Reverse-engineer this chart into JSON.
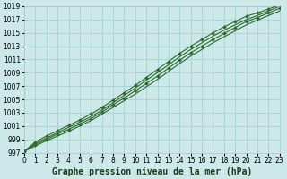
{
  "xlabel": "Graphe pression niveau de la mer (hPa)",
  "x": [
    0,
    1,
    2,
    3,
    4,
    5,
    6,
    7,
    8,
    9,
    10,
    11,
    12,
    13,
    14,
    15,
    16,
    17,
    18,
    19,
    20,
    21,
    22,
    23
  ],
  "lines": [
    [
      997.2,
      998.0,
      998.8,
      999.5,
      1000.2,
      1001.0,
      1001.8,
      1002.8,
      1003.8,
      1004.8,
      1005.8,
      1006.9,
      1008.0,
      1009.2,
      1010.4,
      1011.5,
      1012.5,
      1013.5,
      1014.4,
      1015.3,
      1016.2,
      1016.9,
      1017.6,
      1018.3
    ],
    [
      997.2,
      998.2,
      999.0,
      999.8,
      1000.5,
      1001.3,
      1002.1,
      1003.1,
      1004.2,
      1005.2,
      1006.3,
      1007.4,
      1008.5,
      1009.7,
      1010.9,
      1012.0,
      1013.0,
      1014.0,
      1014.9,
      1015.8,
      1016.7,
      1017.3,
      1018.0,
      1018.7
    ],
    [
      997.2,
      998.4,
      999.2,
      1000.0,
      1000.8,
      1001.6,
      1002.4,
      1003.4,
      1004.5,
      1005.6,
      1006.7,
      1007.9,
      1009.0,
      1010.2,
      1011.4,
      1012.5,
      1013.5,
      1014.5,
      1015.4,
      1016.2,
      1017.0,
      1017.6,
      1018.3,
      1019.0
    ],
    [
      997.2,
      998.6,
      999.5,
      1000.3,
      1001.1,
      1001.9,
      1002.8,
      1003.8,
      1004.9,
      1006.0,
      1007.1,
      1008.3,
      1009.5,
      1010.7,
      1011.9,
      1013.0,
      1014.0,
      1015.0,
      1015.9,
      1016.7,
      1017.5,
      1018.0,
      1018.6,
      1019.2
    ]
  ],
  "markers_on_lines": [
    1,
    3
  ],
  "line_color": "#2d6a2d",
  "marker": "D",
  "marker_size": 2.0,
  "ylim": [
    997,
    1019
  ],
  "yticks": [
    997,
    999,
    1001,
    1003,
    1005,
    1007,
    1009,
    1011,
    1013,
    1015,
    1017,
    1019
  ],
  "xlim": [
    0,
    23
  ],
  "xticks": [
    0,
    1,
    2,
    3,
    4,
    5,
    6,
    7,
    8,
    9,
    10,
    11,
    12,
    13,
    14,
    15,
    16,
    17,
    18,
    19,
    20,
    21,
    22,
    23
  ],
  "bg_color": "#cce8e8",
  "grid_color": "#9ecece",
  "label_color": "#1a3a1a",
  "xlabel_fontsize": 7.0,
  "tick_fontsize": 5.5,
  "linewidth": 0.8
}
